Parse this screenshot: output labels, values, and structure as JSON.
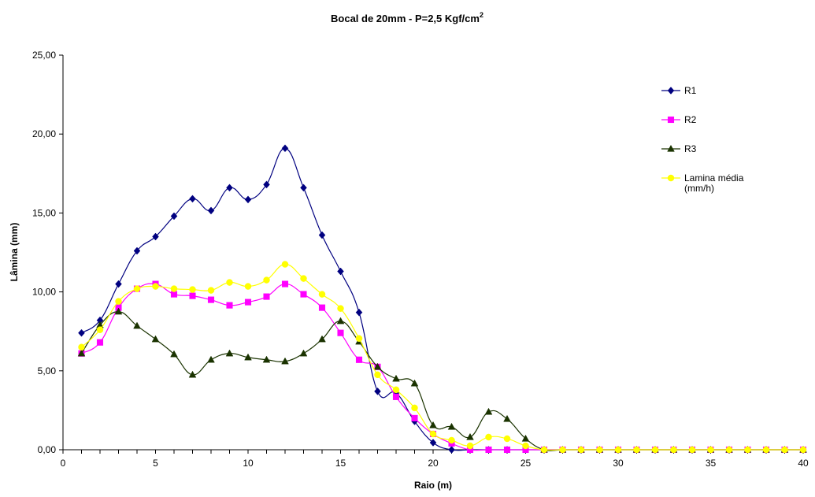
{
  "chart_data": {
    "type": "line",
    "title": "Bocal de 20mm - P=2,5 Kgf/cm",
    "title_sup": "2",
    "xlabel": "Raio (m)",
    "ylabel": "Lâmina (mm)",
    "xlim": [
      0,
      40
    ],
    "ylim": [
      0,
      25
    ],
    "x_ticks": [
      "0",
      "5",
      "10",
      "15",
      "20",
      "25",
      "30",
      "35",
      "40"
    ],
    "y_ticks": [
      "0,00",
      "5,00",
      "10,00",
      "15,00",
      "20,00",
      "25,00"
    ],
    "grid": false,
    "legend_position": "right",
    "x": [
      1,
      2,
      3,
      4,
      5,
      6,
      7,
      8,
      9,
      10,
      11,
      12,
      13,
      14,
      15,
      16,
      17,
      18,
      19,
      20,
      21,
      22,
      23,
      24,
      25,
      26,
      27,
      28,
      29,
      30,
      31,
      32,
      33,
      34,
      35,
      36,
      37,
      38,
      39,
      40
    ],
    "series": [
      {
        "name": "R1",
        "color": "#000080",
        "marker": "diamond",
        "values": [
          7.4,
          8.2,
          10.5,
          12.6,
          13.5,
          14.8,
          15.9,
          15.15,
          16.6,
          15.85,
          16.8,
          19.1,
          16.6,
          13.6,
          11.3,
          8.7,
          3.7,
          3.6,
          1.8,
          0.45,
          0.0,
          0.0,
          0.0,
          0.0,
          0.0,
          0.0,
          0.0,
          0.0,
          0.0,
          0.0,
          0.0,
          0.0,
          0.0,
          0.0,
          0.0,
          0.0,
          0.0,
          0.0,
          0.0,
          0.0
        ]
      },
      {
        "name": "R2",
        "color": "#ff00ff",
        "marker": "square",
        "values": [
          6.1,
          6.8,
          9.0,
          10.2,
          10.5,
          9.85,
          9.75,
          9.5,
          9.15,
          9.35,
          9.7,
          10.5,
          9.85,
          9.0,
          7.4,
          5.7,
          5.25,
          3.35,
          2.0,
          1.0,
          0.4,
          0.0,
          0.0,
          0.0,
          0.0,
          0.0,
          0.0,
          0.0,
          0.0,
          0.0,
          0.0,
          0.0,
          0.0,
          0.0,
          0.0,
          0.0,
          0.0,
          0.0,
          0.0,
          0.0
        ]
      },
      {
        "name": "R3",
        "color": "#1a3300",
        "marker": "triangle",
        "values": [
          6.1,
          7.9,
          8.75,
          7.85,
          7.0,
          6.05,
          4.75,
          5.7,
          6.1,
          5.85,
          5.7,
          5.6,
          6.1,
          7.0,
          8.15,
          6.85,
          5.25,
          4.5,
          4.2,
          1.55,
          1.45,
          0.8,
          2.4,
          1.95,
          0.7,
          0.0,
          0.0,
          0.0,
          0.0,
          0.0,
          0.0,
          0.0,
          0.0,
          0.0,
          0.0,
          0.0,
          0.0,
          0.0,
          0.0,
          0.0
        ]
      },
      {
        "name": "Lamina média (mm/h)",
        "name_lines": [
          "Lamina média",
          "(mm/h)"
        ],
        "color": "#ffff00",
        "marker": "circle",
        "values": [
          6.5,
          7.6,
          9.4,
          10.2,
          10.35,
          10.2,
          10.15,
          10.1,
          10.6,
          10.35,
          10.75,
          11.75,
          10.85,
          9.85,
          8.95,
          7.05,
          4.75,
          3.8,
          2.65,
          1.0,
          0.6,
          0.25,
          0.8,
          0.7,
          0.25,
          0.0,
          0.0,
          0.0,
          0.0,
          0.0,
          0.0,
          0.0,
          0.0,
          0.0,
          0.0,
          0.0,
          0.0,
          0.0,
          0.0,
          0.0
        ]
      }
    ]
  }
}
